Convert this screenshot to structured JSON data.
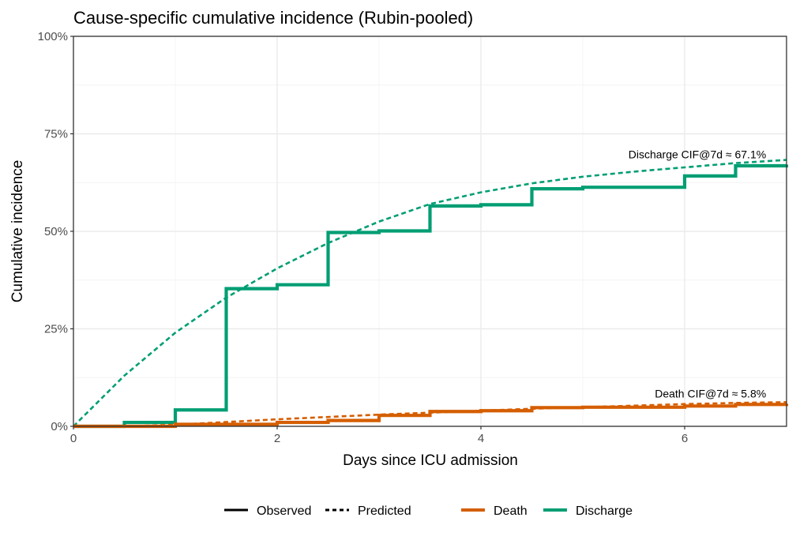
{
  "chart_data": {
    "type": "line",
    "title": "Cause-specific cumulative incidence (Rubin-pooled)",
    "xlabel": "Days since ICU admission",
    "ylabel": "Cumulative incidence",
    "xlim": [
      0,
      7
    ],
    "ylim": [
      0,
      1
    ],
    "x_ticks": [
      0,
      2,
      4,
      6
    ],
    "x_tick_labels": [
      "0",
      "2",
      "4",
      "6"
    ],
    "y_ticks": [
      0,
      0.25,
      0.5,
      0.75,
      1
    ],
    "y_tick_labels": [
      "0%",
      "25%",
      "50%",
      "75%",
      "100%"
    ],
    "grid": true,
    "legend_position": "bottom",
    "legend_linetype": [
      {
        "label": "Observed",
        "style": "solid"
      },
      {
        "label": "Predicted",
        "style": "dashed"
      }
    ],
    "legend_color": [
      {
        "label": "Death",
        "color": "#D55E00"
      },
      {
        "label": "Discharge",
        "color": "#009E73"
      }
    ],
    "series": [
      {
        "name": "Discharge",
        "kind": "Observed",
        "shape": "step",
        "color": "#009E73",
        "x": [
          0,
          0.5,
          1.0,
          1.5,
          1.75,
          2.0,
          2.5,
          3.0,
          3.5,
          4.0,
          4.5,
          5.0,
          6.0,
          6.5,
          7.0
        ],
        "y": [
          0,
          0.01,
          0.042,
          0.353,
          0.353,
          0.363,
          0.497,
          0.501,
          0.565,
          0.568,
          0.609,
          0.613,
          0.642,
          0.668,
          0.671
        ]
      },
      {
        "name": "Discharge",
        "kind": "Predicted",
        "shape": "linear",
        "color": "#009E73",
        "x": [
          0,
          0.5,
          1.0,
          1.5,
          2.0,
          2.5,
          3.0,
          3.5,
          4.0,
          4.5,
          5.0,
          5.5,
          6.0,
          6.5,
          7.0
        ],
        "y": [
          0,
          0.13,
          0.24,
          0.33,
          0.405,
          0.47,
          0.525,
          0.57,
          0.6,
          0.623,
          0.64,
          0.653,
          0.664,
          0.675,
          0.683
        ]
      },
      {
        "name": "Death",
        "kind": "Observed",
        "shape": "step",
        "color": "#D55E00",
        "x": [
          0,
          0.5,
          1.0,
          2.0,
          2.5,
          3.0,
          3.5,
          4.0,
          4.5,
          5.0,
          6.0,
          6.5,
          7.0
        ],
        "y": [
          0,
          0,
          0.005,
          0.01,
          0.015,
          0.028,
          0.038,
          0.04,
          0.048,
          0.049,
          0.052,
          0.056,
          0.058
        ]
      },
      {
        "name": "Death",
        "kind": "Predicted",
        "shape": "linear",
        "color": "#D55E00",
        "x": [
          0,
          0.5,
          1.0,
          1.5,
          2.0,
          2.5,
          3.0,
          3.5,
          4.0,
          4.5,
          5.0,
          5.5,
          6.0,
          6.5,
          7.0
        ],
        "y": [
          0,
          0,
          0.004,
          0.011,
          0.018,
          0.024,
          0.03,
          0.035,
          0.04,
          0.045,
          0.049,
          0.053,
          0.057,
          0.06,
          0.062
        ]
      }
    ],
    "annotations": [
      {
        "text": "Discharge CIF@7d ≈ 67.1%",
        "x": 6.8,
        "y": 0.671
      },
      {
        "text": "Death CIF@7d ≈ 5.8%",
        "x": 6.8,
        "y": 0.058
      }
    ]
  }
}
